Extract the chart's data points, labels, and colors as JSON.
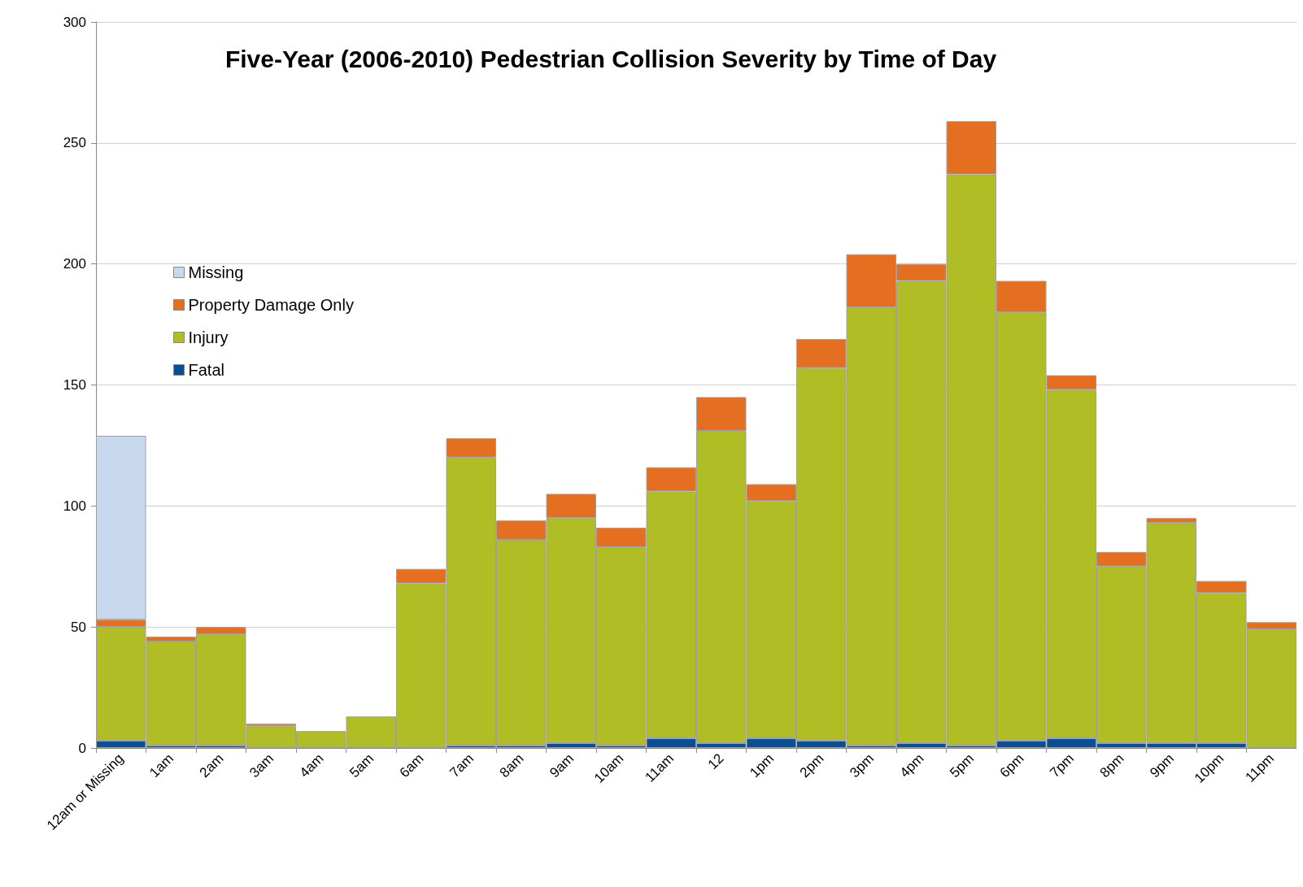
{
  "chart_data": {
    "type": "bar",
    "title": "Five-Year (2006-2010) Pedestrian Collision Severity by Time of Day",
    "categories": [
      "12am or Missing",
      "1am",
      "2am",
      "3am",
      "4am",
      "5am",
      "6am",
      "7am",
      "8am",
      "9am",
      "10am",
      "11am",
      "12",
      "1pm",
      "2pm",
      "3pm",
      "4pm",
      "5pm",
      "6pm",
      "7pm",
      "8pm",
      "9pm",
      "10pm",
      "11pm"
    ],
    "stacked": true,
    "series": [
      {
        "name": "Fatal",
        "color": "#0a4f96",
        "values": [
          3,
          1,
          1,
          0,
          0,
          0,
          0,
          1,
          1,
          2,
          1,
          4,
          2,
          4,
          3,
          1,
          2,
          1,
          3,
          4,
          2,
          2,
          2,
          0
        ]
      },
      {
        "name": "Injury",
        "color": "#b0bd24",
        "values": [
          47,
          43,
          46,
          9,
          7,
          13,
          68,
          119,
          85,
          93,
          82,
          102,
          129,
          98,
          154,
          181,
          191,
          236,
          177,
          144,
          73,
          91,
          62,
          49
        ]
      },
      {
        "name": "Property Damage Only",
        "color": "#e46f20",
        "values": [
          3,
          2,
          3,
          1,
          0,
          0,
          6,
          8,
          8,
          10,
          8,
          10,
          14,
          7,
          12,
          22,
          7,
          22,
          13,
          6,
          6,
          2,
          5,
          3
        ]
      },
      {
        "name": "Missing",
        "color": "#c8d9ef",
        "values": [
          76,
          null,
          null,
          null,
          null,
          null,
          null,
          null,
          null,
          null,
          null,
          null,
          null,
          null,
          null,
          null,
          null,
          null,
          null,
          null,
          null,
          null,
          null,
          null
        ]
      }
    ],
    "ylim": [
      0,
      300
    ],
    "yticks": [
      0,
      50,
      100,
      150,
      200,
      250,
      300
    ],
    "grid": "y",
    "legend": "top left"
  }
}
